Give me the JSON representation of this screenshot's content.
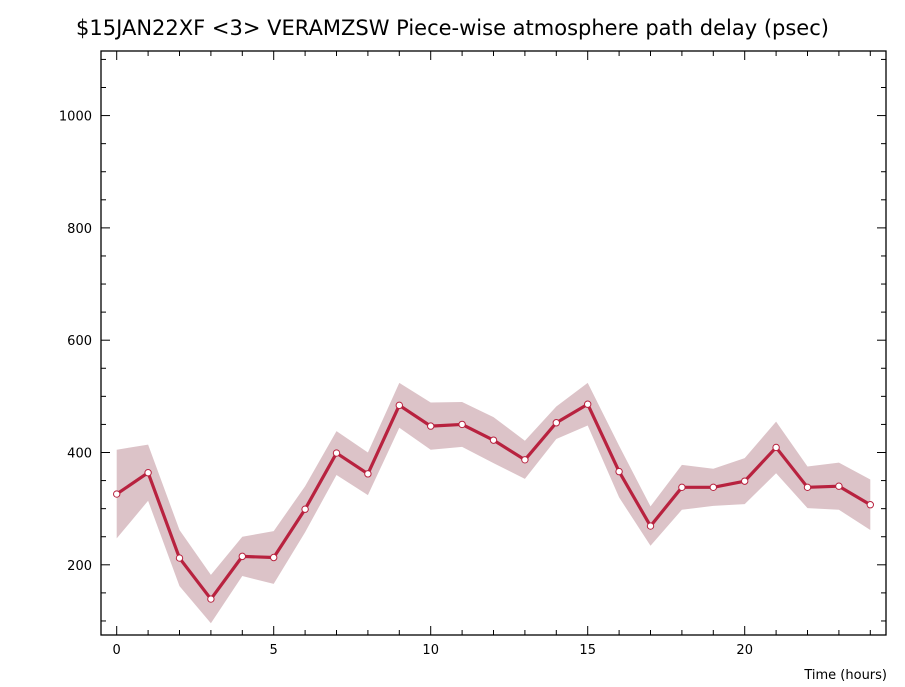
{
  "chart_data": {
    "type": "line",
    "title": "$15JAN22XF <3>  VERAMZSW  Piece-wise atmosphere path delay (psec)",
    "xlabel": "Time (hours)",
    "ylabel": "",
    "xlim": [
      -0.5,
      24.5
    ],
    "ylim": [
      75,
      1115
    ],
    "x_ticks": [
      0,
      5,
      10,
      15,
      20
    ],
    "y_ticks": [
      200,
      400,
      600,
      800,
      1000
    ],
    "x_minor_step": 1,
    "y_minor_step": 50,
    "grid": false,
    "series": [
      {
        "x": [
          0,
          1,
          2,
          3,
          4,
          5,
          6,
          7,
          8,
          9,
          10,
          11,
          12,
          13,
          14,
          15,
          16,
          17,
          18,
          19,
          20,
          21,
          22,
          23,
          24
        ],
        "values": [
          326,
          364,
          212,
          139,
          215,
          213,
          299,
          399,
          362,
          484,
          447,
          450,
          422,
          387,
          453,
          486,
          366,
          269,
          338,
          338,
          349,
          409,
          338,
          340,
          307
        ],
        "upper": [
          405,
          414,
          262,
          182,
          250,
          260,
          340,
          438,
          400,
          524,
          489,
          490,
          463,
          421,
          482,
          524,
          412,
          304,
          378,
          371,
          390,
          455,
          375,
          382,
          352
        ],
        "lower": [
          247,
          314,
          162,
          96,
          180,
          166,
          258,
          360,
          324,
          444,
          405,
          410,
          381,
          353,
          424,
          448,
          320,
          234,
          298,
          305,
          308,
          363,
          301,
          298,
          262
        ]
      }
    ],
    "colors": {
      "line": "#b8223f",
      "band": "#dcc3c8",
      "marker_fill": "#ffffff",
      "axis": "#000000"
    }
  }
}
